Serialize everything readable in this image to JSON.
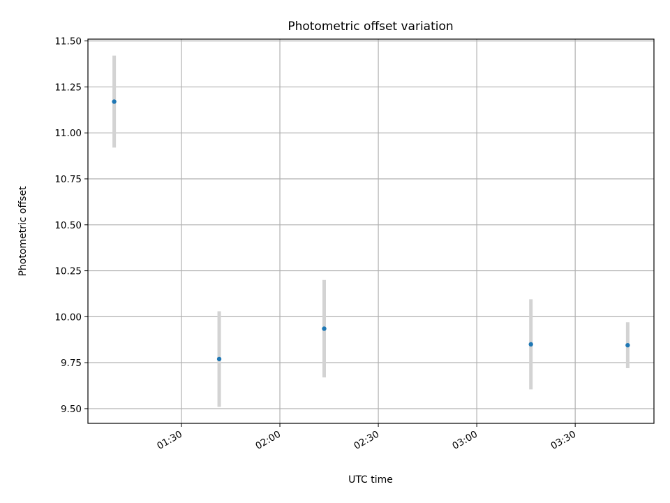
{
  "chart_data": {
    "type": "scatter",
    "title": "Photometric offset variation",
    "xlabel": "UTC time",
    "ylabel": "Photometric offset",
    "x_tick_labels": [
      "01:30",
      "02:00",
      "02:30",
      "03:00",
      "03:30"
    ],
    "x_tick_minutes": [
      90,
      120,
      150,
      180,
      210
    ],
    "y_tick_labels": [
      "9.50",
      "9.75",
      "10.00",
      "10.25",
      "10.50",
      "10.75",
      "11.00",
      "11.25",
      "11.50"
    ],
    "y_ticks": [
      9.5,
      9.75,
      10.0,
      10.25,
      10.5,
      10.75,
      11.0,
      11.25,
      11.5
    ],
    "ylim": [
      9.42,
      11.51
    ],
    "xlim_minutes": [
      61.5,
      234
    ],
    "grid": true,
    "points": [
      {
        "time_minutes": 69.5,
        "y": 11.17,
        "err": 0.25
      },
      {
        "time_minutes": 101.5,
        "y": 9.77,
        "err": 0.26
      },
      {
        "time_minutes": 133.5,
        "y": 9.935,
        "err": 0.265
      },
      {
        "time_minutes": 196.5,
        "y": 9.85,
        "err": 0.245
      },
      {
        "time_minutes": 226.0,
        "y": 9.845,
        "err": 0.125
      }
    ],
    "colors": {
      "point": "#1f77b4",
      "errorbar": "#d3d3d3",
      "grid": "#b0b0b0"
    }
  }
}
